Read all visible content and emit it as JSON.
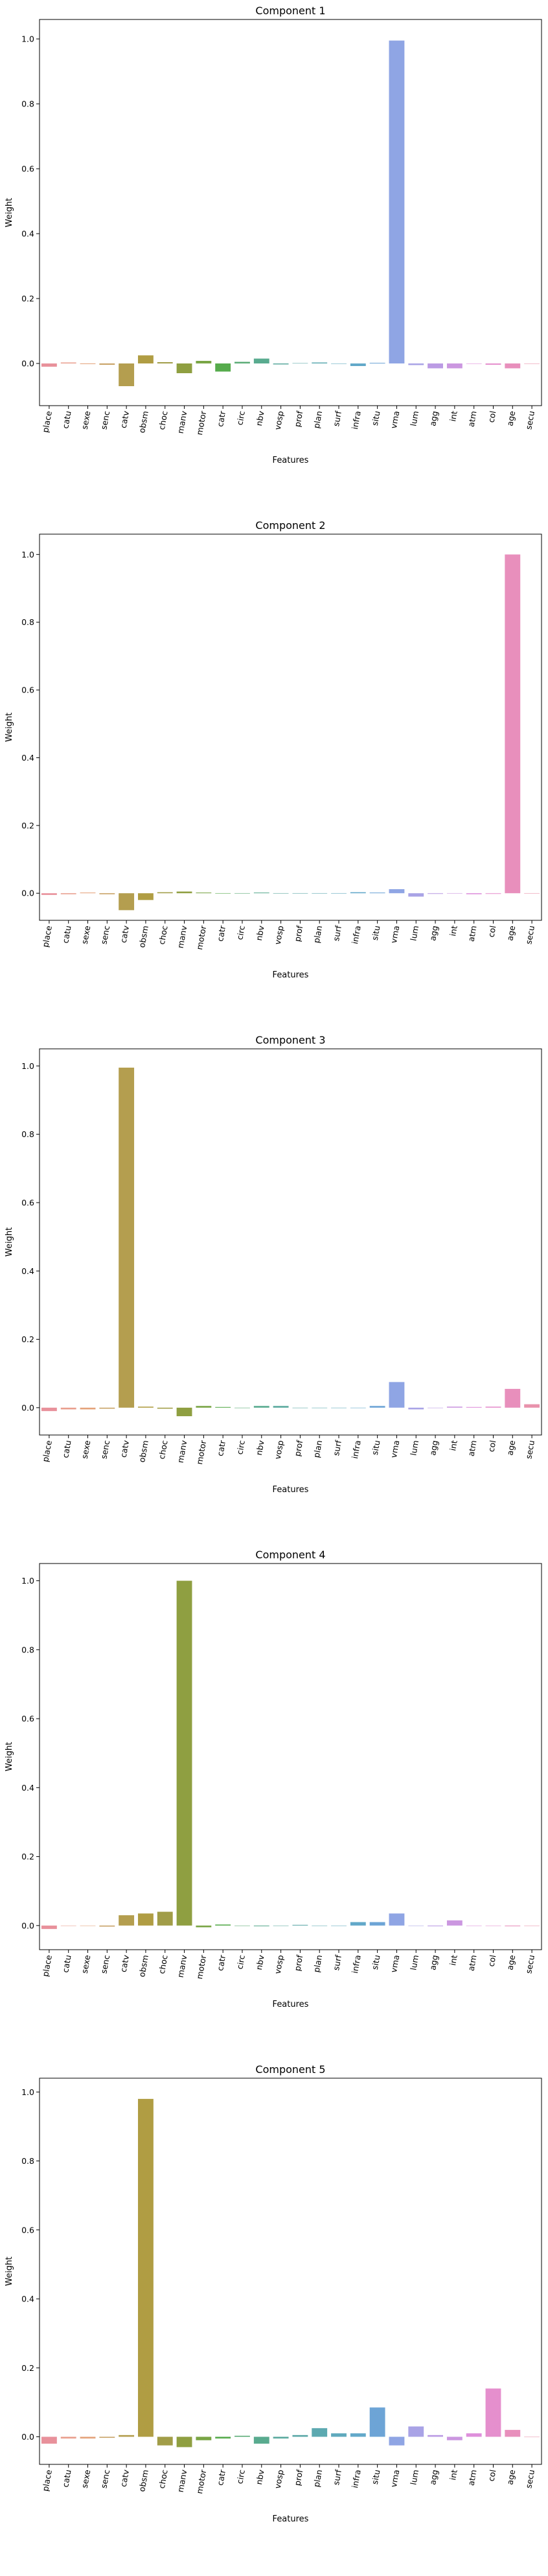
{
  "chart_data": [
    {
      "type": "bar",
      "title": "Component 1",
      "xlabel": "Features",
      "ylabel": "Weight",
      "categories": [
        "place",
        "catu",
        "sexe",
        "senc",
        "catv",
        "obsm",
        "choc",
        "manv",
        "motor",
        "catr",
        "circ",
        "nbv",
        "vosp",
        "prof",
        "plan",
        "surf",
        "infra",
        "situ",
        "vma",
        "lum",
        "agg",
        "int",
        "atm",
        "col",
        "age",
        "secu"
      ],
      "values": [
        -0.01,
        0.003,
        -0.002,
        -0.004,
        -0.07,
        0.025,
        0.004,
        -0.03,
        0.008,
        -0.025,
        0.005,
        0.015,
        -0.003,
        0.001,
        0.003,
        0.0,
        -0.008,
        0.002,
        0.995,
        -0.005,
        -0.015,
        -0.015,
        0.0,
        -0.004,
        -0.015,
        0.0
      ],
      "ylim": [
        -0.13,
        1.06
      ],
      "yticks": [
        0.0,
        0.2,
        0.4,
        0.6,
        0.8,
        1.0
      ],
      "tick_labels": [
        "0.0",
        "0.2",
        "0.4",
        "0.6",
        "0.8",
        "1.0"
      ]
    },
    {
      "type": "bar",
      "title": "Component 2",
      "xlabel": "Features",
      "ylabel": "Weight",
      "categories": [
        "place",
        "catu",
        "sexe",
        "senc",
        "catv",
        "obsm",
        "choc",
        "manv",
        "motor",
        "catr",
        "circ",
        "nbv",
        "vosp",
        "prof",
        "plan",
        "surf",
        "infra",
        "situ",
        "vma",
        "lum",
        "agg",
        "int",
        "atm",
        "col",
        "age",
        "secu"
      ],
      "values": [
        -0.005,
        -0.003,
        0.002,
        -0.003,
        -0.05,
        -0.02,
        0.003,
        0.005,
        0.002,
        0.0,
        0.0,
        0.002,
        0.0,
        0.0,
        0.0,
        0.0,
        0.003,
        0.002,
        0.012,
        -0.01,
        -0.002,
        0.0,
        -0.003,
        -0.002,
        1.0,
        0.0
      ],
      "ylim": [
        -0.08,
        1.06
      ],
      "yticks": [
        0.0,
        0.2,
        0.4,
        0.6,
        0.8,
        1.0
      ],
      "tick_labels": [
        "0.0",
        "0.2",
        "0.4",
        "0.6",
        "0.8",
        "1.0"
      ]
    },
    {
      "type": "bar",
      "title": "Component 3",
      "xlabel": "Features",
      "ylabel": "Weight",
      "categories": [
        "place",
        "catu",
        "sexe",
        "senc",
        "catv",
        "obsm",
        "choc",
        "manv",
        "motor",
        "catr",
        "circ",
        "nbv",
        "vosp",
        "prof",
        "plan",
        "surf",
        "infra",
        "situ",
        "vma",
        "lum",
        "agg",
        "int",
        "atm",
        "col",
        "age",
        "secu"
      ],
      "values": [
        -0.01,
        -0.005,
        -0.005,
        -0.003,
        0.995,
        0.003,
        -0.003,
        -0.025,
        0.005,
        0.002,
        0.0,
        0.005,
        0.005,
        0.0,
        0.0,
        0.0,
        0.0,
        0.005,
        0.075,
        -0.005,
        0.0,
        0.003,
        0.002,
        0.003,
        0.055,
        0.01
      ],
      "ylim": [
        -0.08,
        1.05
      ],
      "yticks": [
        0.0,
        0.2,
        0.4,
        0.6,
        0.8,
        1.0
      ],
      "tick_labels": [
        "0.0",
        "0.2",
        "0.4",
        "0.6",
        "0.8",
        "1.0"
      ]
    },
    {
      "type": "bar",
      "title": "Component 4",
      "xlabel": "Features",
      "ylabel": "Weight",
      "categories": [
        "place",
        "catu",
        "sexe",
        "senc",
        "catv",
        "obsm",
        "choc",
        "manv",
        "motor",
        "catr",
        "circ",
        "nbv",
        "vosp",
        "prof",
        "plan",
        "surf",
        "infra",
        "situ",
        "vma",
        "lum",
        "agg",
        "int",
        "atm",
        "col",
        "age",
        "secu"
      ],
      "values": [
        -0.01,
        0.0,
        0.0,
        -0.003,
        0.03,
        0.035,
        0.04,
        1.0,
        -0.005,
        0.003,
        0.0,
        -0.002,
        0.0,
        0.002,
        0.0,
        0.0,
        0.01,
        0.01,
        0.035,
        0.0,
        -0.002,
        0.015,
        0.0,
        0.0,
        -0.002,
        0.0
      ],
      "ylim": [
        -0.07,
        1.05
      ],
      "yticks": [
        0.0,
        0.2,
        0.4,
        0.6,
        0.8,
        1.0
      ],
      "tick_labels": [
        "0.0",
        "0.2",
        "0.4",
        "0.6",
        "0.8",
        "1.0"
      ]
    },
    {
      "type": "bar",
      "title": "Component 5",
      "xlabel": "Features",
      "ylabel": "Weight",
      "categories": [
        "place",
        "catu",
        "sexe",
        "senc",
        "catv",
        "obsm",
        "choc",
        "manv",
        "motor",
        "catr",
        "circ",
        "nbv",
        "vosp",
        "prof",
        "plan",
        "surf",
        "infra",
        "situ",
        "vma",
        "lum",
        "agg",
        "int",
        "atm",
        "col",
        "age",
        "secu"
      ],
      "values": [
        -0.02,
        -0.005,
        -0.005,
        -0.003,
        0.005,
        0.98,
        -0.025,
        -0.03,
        -0.01,
        -0.005,
        0.003,
        -0.02,
        -0.005,
        0.005,
        0.025,
        0.01,
        0.01,
        0.085,
        -0.025,
        0.03,
        0.005,
        -0.01,
        0.01,
        0.14,
        0.02,
        0.0
      ],
      "ylim": [
        -0.08,
        1.04
      ],
      "yticks": [
        0.0,
        0.2,
        0.4,
        0.6,
        0.8,
        1.0
      ],
      "tick_labels": [
        "0.0",
        "0.2",
        "0.4",
        "0.6",
        "0.8",
        "1.0"
      ]
    }
  ],
  "colors": [
    "#e8919b",
    "#e99e8d",
    "#e4a27a",
    "#c7a063",
    "#b49e4f",
    "#b09d43",
    "#a19d48",
    "#8f9f41",
    "#79a545",
    "#56ab4c",
    "#5aab75",
    "#59ab8f",
    "#5aa99e",
    "#5ba8a7",
    "#5ca9b0",
    "#5fa9bd",
    "#62a8c9",
    "#6da4d6",
    "#8fa5e4",
    "#a9a3e6",
    "#bb9be4",
    "#cb97e0",
    "#de8fdb",
    "#e58fcd",
    "#e88fbc",
    "#e992ac"
  ]
}
